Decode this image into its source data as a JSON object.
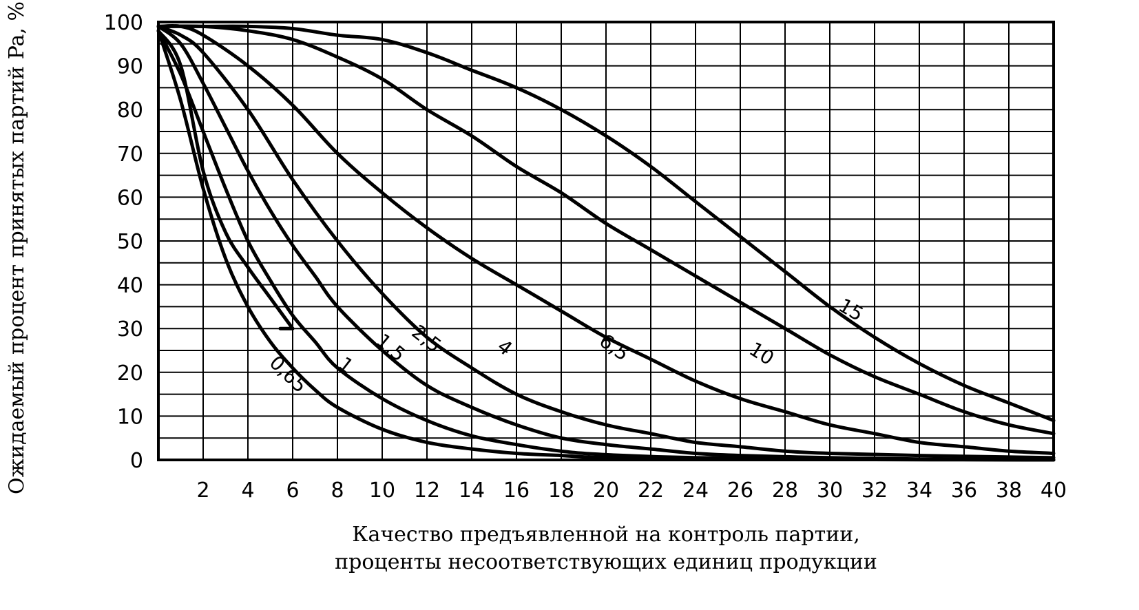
{
  "chart_data": {
    "type": "line",
    "title": "",
    "xlabel": [
      "Качество предъявленной на контроль партии,",
      "проценты несоответствующих единиц продукции"
    ],
    "ylabel": "Ожидаемый процент принятых партий Pa, %",
    "xlim": [
      0,
      40
    ],
    "ylim": [
      0,
      100
    ],
    "grid": true,
    "x_ticks": [
      "2",
      "4",
      "6",
      "8",
      "10",
      "12",
      "14",
      "16",
      "18",
      "20",
      "22",
      "24",
      "26",
      "28",
      "30",
      "32",
      "34",
      "36",
      "38",
      "40"
    ],
    "y_ticks": [
      "0",
      "10",
      "20",
      "30",
      "40",
      "50",
      "60",
      "70",
      "80",
      "90",
      "100"
    ],
    "series": [
      {
        "name": "0,65",
        "points": [
          [
            0,
            98
          ],
          [
            1,
            90
          ],
          [
            2,
            66
          ],
          [
            3,
            52
          ],
          [
            4,
            44
          ],
          [
            5,
            37
          ],
          [
            6,
            30
          ]
        ]
      },
      {
        "name": "1",
        "points": [
          [
            0,
            98
          ],
          [
            1,
            82
          ],
          [
            2,
            62
          ],
          [
            3,
            46
          ],
          [
            4,
            35
          ],
          [
            5,
            27
          ],
          [
            6,
            21
          ],
          [
            7,
            16
          ],
          [
            8,
            12
          ],
          [
            10,
            7
          ],
          [
            12,
            4
          ],
          [
            14,
            2.5
          ],
          [
            16,
            1.5
          ],
          [
            18,
            1
          ],
          [
            20,
            0.5
          ],
          [
            24,
            0.3
          ],
          [
            30,
            0.1
          ],
          [
            40,
            0
          ]
        ]
      },
      {
        "name": "1,5",
        "points": [
          [
            0,
            98
          ],
          [
            1,
            88
          ],
          [
            2,
            75
          ],
          [
            3,
            62
          ],
          [
            4,
            50
          ],
          [
            5,
            41
          ],
          [
            6,
            33
          ],
          [
            7,
            27
          ],
          [
            8,
            21
          ],
          [
            10,
            14
          ],
          [
            12,
            9
          ],
          [
            14,
            5.5
          ],
          [
            16,
            3.5
          ],
          [
            18,
            2
          ],
          [
            20,
            1.2
          ],
          [
            24,
            0.5
          ],
          [
            30,
            0.2
          ],
          [
            40,
            0
          ]
        ]
      },
      {
        "name": "2,5",
        "points": [
          [
            0,
            99
          ],
          [
            1,
            95
          ],
          [
            2,
            86
          ],
          [
            3,
            76
          ],
          [
            4,
            66
          ],
          [
            5,
            57
          ],
          [
            6,
            49
          ],
          [
            7,
            42
          ],
          [
            8,
            35
          ],
          [
            10,
            25
          ],
          [
            12,
            17
          ],
          [
            14,
            12
          ],
          [
            16,
            8
          ],
          [
            18,
            5
          ],
          [
            20,
            3.5
          ],
          [
            22,
            2.5
          ],
          [
            24,
            1.5
          ],
          [
            26,
            1
          ],
          [
            30,
            0.5
          ],
          [
            34,
            0.2
          ],
          [
            40,
            0
          ]
        ]
      },
      {
        "name": "4",
        "points": [
          [
            0,
            99
          ],
          [
            1,
            97
          ],
          [
            2,
            93
          ],
          [
            4,
            80
          ],
          [
            6,
            64
          ],
          [
            8,
            50
          ],
          [
            10,
            38
          ],
          [
            12,
            28
          ],
          [
            14,
            21
          ],
          [
            16,
            15
          ],
          [
            18,
            11
          ],
          [
            20,
            8
          ],
          [
            22,
            6
          ],
          [
            24,
            4
          ],
          [
            26,
            3
          ],
          [
            28,
            2
          ],
          [
            30,
            1.5
          ],
          [
            34,
            1
          ],
          [
            40,
            0.5
          ]
        ]
      },
      {
        "name": "6,5",
        "points": [
          [
            0,
            99
          ],
          [
            1,
            99
          ],
          [
            2,
            97
          ],
          [
            4,
            90
          ],
          [
            6,
            81
          ],
          [
            8,
            70
          ],
          [
            10,
            61
          ],
          [
            12,
            53
          ],
          [
            14,
            46
          ],
          [
            16,
            40
          ],
          [
            18,
            34
          ],
          [
            20,
            28
          ],
          [
            22,
            23
          ],
          [
            24,
            18
          ],
          [
            26,
            14
          ],
          [
            28,
            11
          ],
          [
            30,
            8
          ],
          [
            32,
            6
          ],
          [
            34,
            4
          ],
          [
            36,
            3
          ],
          [
            38,
            2
          ],
          [
            40,
            1.5
          ]
        ]
      },
      {
        "name": "10",
        "points": [
          [
            0,
            99
          ],
          [
            2,
            99
          ],
          [
            4,
            98
          ],
          [
            6,
            96
          ],
          [
            8,
            92
          ],
          [
            10,
            87
          ],
          [
            12,
            80
          ],
          [
            14,
            74
          ],
          [
            16,
            67
          ],
          [
            18,
            61
          ],
          [
            20,
            54
          ],
          [
            22,
            48
          ],
          [
            24,
            42
          ],
          [
            26,
            36
          ],
          [
            28,
            30
          ],
          [
            30,
            24
          ],
          [
            32,
            19
          ],
          [
            34,
            15
          ],
          [
            36,
            11
          ],
          [
            38,
            8
          ],
          [
            40,
            6
          ]
        ]
      },
      {
        "name": "15",
        "points": [
          [
            0,
            99
          ],
          [
            2,
            99
          ],
          [
            4,
            99
          ],
          [
            6,
            98.5
          ],
          [
            8,
            97
          ],
          [
            10,
            96
          ],
          [
            12,
            93
          ],
          [
            14,
            89
          ],
          [
            16,
            85
          ],
          [
            18,
            80
          ],
          [
            20,
            74
          ],
          [
            22,
            67
          ],
          [
            24,
            59
          ],
          [
            26,
            51
          ],
          [
            28,
            43
          ],
          [
            30,
            35
          ],
          [
            32,
            28
          ],
          [
            34,
            22
          ],
          [
            36,
            17
          ],
          [
            38,
            13
          ],
          [
            40,
            9
          ]
        ]
      }
    ]
  }
}
